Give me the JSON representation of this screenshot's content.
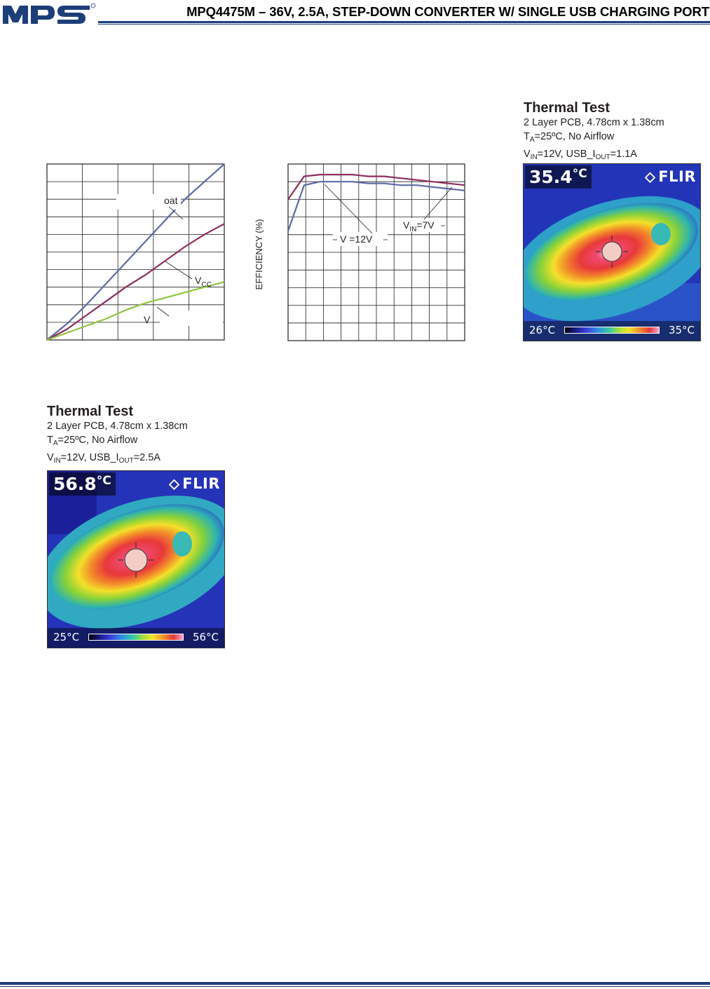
{
  "header": {
    "logo_text": "mps",
    "title": "MPQ4475M – 36V, 2.5A, STEP-DOWN CONVERTER W/ SINGLE USB CHARGING PORT"
  },
  "chart_data": [
    {
      "type": "line",
      "title": "",
      "xlabel": "",
      "ylabel": "",
      "grid": true,
      "series": [
        {
          "name": "oat",
          "color": "#5b6aa7",
          "values": [
            0.0,
            0.09,
            0.2,
            0.32,
            0.44,
            0.56,
            0.68,
            0.8,
            0.9,
            1.0
          ]
        },
        {
          "name": "VCC",
          "color": "#8d2d5e",
          "values": [
            0.0,
            0.06,
            0.14,
            0.22,
            0.3,
            0.37,
            0.45,
            0.53,
            0.6,
            0.66
          ]
        },
        {
          "name": "V",
          "color": "#8dc63f",
          "values": [
            0.0,
            0.04,
            0.08,
            0.12,
            0.17,
            0.21,
            0.24,
            0.27,
            0.3,
            0.33
          ]
        }
      ],
      "annotations": [
        "oat",
        "VCC",
        "V"
      ]
    },
    {
      "type": "line",
      "title": "",
      "xlabel": "",
      "ylabel": "EFFICIENCY (%)",
      "grid": true,
      "series": [
        {
          "name": "VIN=7V",
          "color": "#8d2d5e",
          "values": [
            0.8,
            0.93,
            0.94,
            0.94,
            0.94,
            0.93,
            0.93,
            0.92,
            0.91,
            0.9,
            0.89,
            0.88
          ]
        },
        {
          "name": "V =12V",
          "color": "#5b6aa7",
          "values": [
            0.62,
            0.88,
            0.9,
            0.9,
            0.9,
            0.89,
            0.89,
            0.88,
            0.88,
            0.87,
            0.86,
            0.85
          ]
        }
      ],
      "annotations": [
        "V =12V",
        "VIN=7V"
      ]
    }
  ],
  "thermal_tests": [
    {
      "title": "Thermal Test",
      "line1": "2 Layer PCB, 4.78cm x 1.38cm",
      "ta_sub": "A",
      "ta_rest": "=25ºC, No Airflow",
      "vin_sub": "IN",
      "vin_rest": "=12V, USB_I",
      "iout_sub": "OUT",
      "iout_rest": "=1.1A",
      "image": {
        "max_temp": "35.4",
        "unit": "°C",
        "brand": "FLIR",
        "scale_min": "26°C",
        "scale_max": "35°C"
      }
    },
    {
      "title": "Thermal Test",
      "line1": "2 Layer PCB, 4.78cm x 1.38cm",
      "ta_sub": "A",
      "ta_rest": "=25ºC, No Airflow",
      "vin_sub": "IN",
      "vin_rest": "=12V, USB_I",
      "iout_sub": "OUT",
      "iout_rest": "=2.5A",
      "image": {
        "max_temp": "56.8",
        "unit": "°C",
        "brand": "FLIR",
        "scale_min": "25°C",
        "scale_max": "56°C"
      }
    }
  ]
}
